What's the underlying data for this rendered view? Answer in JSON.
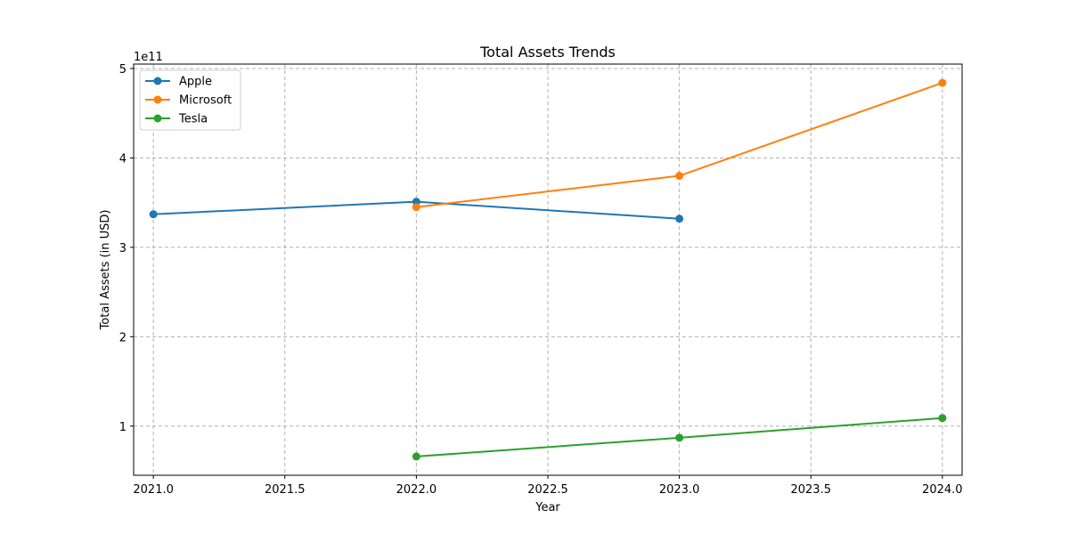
{
  "chart_data": {
    "type": "line",
    "title": "Total Assets Trends",
    "xlabel": "Year",
    "ylabel": "Total Assets (in USD)",
    "y_offset_label": "1e11",
    "xlim": [
      2020.925,
      2024.075
    ],
    "ylim": [
      0.45,
      5.05
    ],
    "y_multiplier": 100000000000,
    "xticks": [
      2021.0,
      2021.5,
      2022.0,
      2022.5,
      2023.0,
      2023.5,
      2024.0
    ],
    "xtick_labels": [
      "2021.0",
      "2021.5",
      "2022.0",
      "2022.5",
      "2023.0",
      "2023.5",
      "2024.0"
    ],
    "yticks": [
      1,
      2,
      3,
      4,
      5
    ],
    "ytick_labels": [
      "1",
      "2",
      "3",
      "4",
      "5"
    ],
    "grid": true,
    "legend_position": "top-left",
    "series": [
      {
        "name": "Apple",
        "color": "#1f77b4",
        "x": [
          2021,
          2022,
          2023
        ],
        "y": [
          3.37,
          3.51,
          3.32
        ]
      },
      {
        "name": "Microsoft",
        "color": "#ff7f0e",
        "x": [
          2022,
          2023,
          2024
        ],
        "y": [
          3.45,
          3.8,
          4.84
        ]
      },
      {
        "name": "Tesla",
        "color": "#2ca02c",
        "x": [
          2022,
          2023,
          2024
        ],
        "y": [
          0.66,
          0.87,
          1.09
        ]
      }
    ]
  }
}
